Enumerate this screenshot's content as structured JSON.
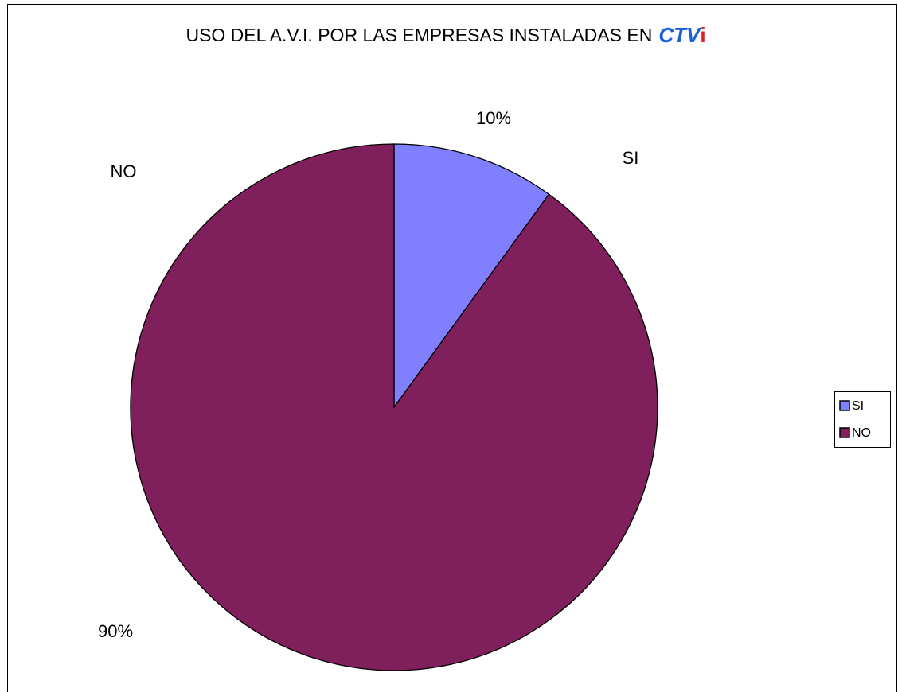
{
  "chart_data": {
    "type": "pie",
    "title": "USO DEL A.V.I. POR LAS EMPRESAS INSTALADAS EN",
    "title_logo": "CTV",
    "title_logo_accent": "i",
    "categories": [
      "SI",
      "NO"
    ],
    "values": [
      10,
      90
    ],
    "value_labels": [
      "10%",
      "90%"
    ],
    "colors": [
      "#8080ff",
      "#7f1f5c"
    ],
    "legend": "right"
  }
}
